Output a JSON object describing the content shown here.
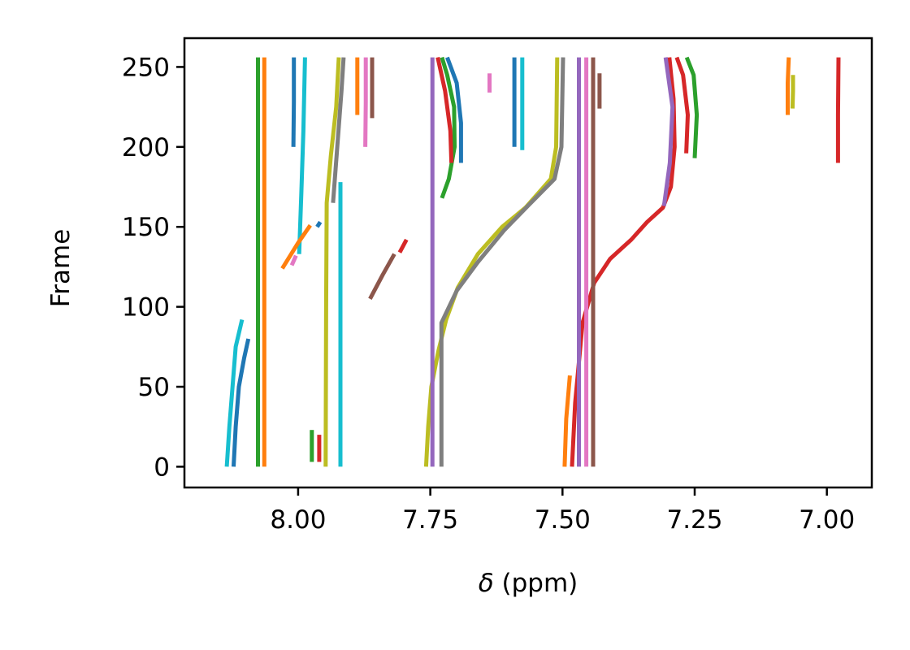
{
  "chart_data": {
    "type": "line",
    "xlabel": "δ (ppm)",
    "xlabel_symbol": "δ",
    "xlabel_unit": " (ppm)",
    "ylabel": "Frame",
    "xlim": [
      8.215,
      6.915
    ],
    "ylim": [
      -13,
      268
    ],
    "x_reversed": true,
    "grid": false,
    "x_ticks": [
      8.0,
      7.75,
      7.5,
      7.25,
      7.0
    ],
    "x_tick_labels": [
      "8.00",
      "7.75",
      "7.50",
      "7.25",
      "7.00"
    ],
    "y_ticks": [
      0,
      50,
      100,
      150,
      200,
      250
    ],
    "y_tick_labels": [
      "0",
      "50",
      "100",
      "150",
      "200",
      "250"
    ],
    "series": [
      {
        "color": "#17becf",
        "points": [
          [
            8.135,
            0
          ],
          [
            8.13,
            25
          ],
          [
            8.124,
            50
          ],
          [
            8.118,
            75
          ],
          [
            8.106,
            92
          ]
        ]
      },
      {
        "color": "#1f77b4",
        "points": [
          [
            8.122,
            0
          ],
          [
            8.118,
            25
          ],
          [
            8.112,
            50
          ],
          [
            8.102,
            68
          ],
          [
            8.094,
            80
          ]
        ]
      },
      {
        "color": "#2ca02c",
        "points": [
          [
            8.076,
            0
          ],
          [
            8.076,
            128
          ],
          [
            8.076,
            256
          ]
        ]
      },
      {
        "color": "#ff7f0e",
        "points": [
          [
            8.064,
            0
          ],
          [
            8.064,
            128
          ],
          [
            8.064,
            256
          ]
        ]
      },
      {
        "color": "#1f77b4",
        "points": [
          [
            8.009,
            200
          ],
          [
            8.008,
            228
          ],
          [
            8.008,
            256
          ]
        ]
      },
      {
        "color": "#17becf",
        "points": [
          [
            7.998,
            133
          ],
          [
            7.994,
            170
          ],
          [
            7.99,
            210
          ],
          [
            7.987,
            256
          ]
        ]
      },
      {
        "color": "#ff7f0e",
        "points": [
          [
            8.03,
            124
          ],
          [
            8.0,
            140
          ],
          [
            7.977,
            151
          ]
        ]
      },
      {
        "color": "#e377c2",
        "points": [
          [
            8.012,
            126
          ],
          [
            8.004,
            132
          ]
        ]
      },
      {
        "color": "#1f77b4",
        "points": [
          [
            7.964,
            150
          ],
          [
            7.958,
            153
          ]
        ]
      },
      {
        "color": "#2ca02c",
        "points": [
          [
            7.974,
            3
          ],
          [
            7.974,
            23
          ]
        ]
      },
      {
        "color": "#d62728",
        "points": [
          [
            7.96,
            3
          ],
          [
            7.96,
            20
          ]
        ]
      },
      {
        "color": "#bcbd22",
        "points": [
          [
            7.948,
            0
          ],
          [
            7.947,
            100
          ],
          [
            7.946,
            165
          ],
          [
            7.938,
            195
          ],
          [
            7.928,
            225
          ],
          [
            7.923,
            256
          ]
        ]
      },
      {
        "color": "#7f7f7f",
        "points": [
          [
            7.934,
            165
          ],
          [
            7.926,
            200
          ],
          [
            7.918,
            235
          ],
          [
            7.914,
            256
          ]
        ]
      },
      {
        "color": "#17becf",
        "points": [
          [
            7.92,
            0
          ],
          [
            7.92,
            90
          ],
          [
            7.92,
            178
          ]
        ]
      },
      {
        "color": "#ff7f0e",
        "points": [
          [
            7.888,
            220
          ],
          [
            7.888,
            256
          ]
        ]
      },
      {
        "color": "#e377c2",
        "points": [
          [
            7.873,
            200
          ],
          [
            7.872,
            228
          ],
          [
            7.872,
            256
          ]
        ]
      },
      {
        "color": "#8c564b",
        "points": [
          [
            7.86,
            218
          ],
          [
            7.86,
            256
          ]
        ]
      },
      {
        "color": "#8c564b",
        "points": [
          [
            7.864,
            105
          ],
          [
            7.84,
            120
          ],
          [
            7.818,
            133
          ]
        ]
      },
      {
        "color": "#d62728",
        "points": [
          [
            7.808,
            134
          ],
          [
            7.795,
            142
          ]
        ]
      },
      {
        "color": "#bcbd22",
        "points": [
          [
            7.758,
            0
          ],
          [
            7.754,
            25
          ],
          [
            7.748,
            50
          ],
          [
            7.735,
            72
          ],
          [
            7.72,
            92
          ],
          [
            7.698,
            112
          ],
          [
            7.66,
            133
          ],
          [
            7.614,
            150
          ],
          [
            7.57,
            162
          ],
          [
            7.522,
            180
          ],
          [
            7.512,
            200
          ],
          [
            7.51,
            256
          ]
        ]
      },
      {
        "color": "#9467bd",
        "points": [
          [
            7.746,
            0
          ],
          [
            7.746,
            128
          ],
          [
            7.746,
            256
          ]
        ]
      },
      {
        "color": "#7f7f7f",
        "points": [
          [
            7.729,
            0
          ],
          [
            7.729,
            50
          ],
          [
            7.729,
            90
          ],
          [
            7.7,
            110
          ],
          [
            7.66,
            128
          ],
          [
            7.61,
            148
          ],
          [
            7.56,
            165
          ],
          [
            7.515,
            180
          ],
          [
            7.502,
            200
          ],
          [
            7.499,
            256
          ]
        ]
      },
      {
        "color": "#2ca02c",
        "points": [
          [
            7.728,
            168
          ],
          [
            7.715,
            180
          ],
          [
            7.704,
            200
          ],
          [
            7.705,
            225
          ],
          [
            7.718,
            245
          ],
          [
            7.728,
            256
          ]
        ]
      },
      {
        "color": "#d62728",
        "points": [
          [
            7.736,
            256
          ],
          [
            7.722,
            235
          ],
          [
            7.712,
            210
          ],
          [
            7.71,
            190
          ]
        ]
      },
      {
        "color": "#1f77b4",
        "points": [
          [
            7.718,
            256
          ],
          [
            7.7,
            240
          ],
          [
            7.692,
            215
          ],
          [
            7.692,
            190
          ]
        ]
      },
      {
        "color": "#e377c2",
        "points": [
          [
            7.638,
            246
          ],
          [
            7.638,
            234
          ]
        ]
      },
      {
        "color": "#1f77b4",
        "points": [
          [
            7.591,
            200
          ],
          [
            7.591,
            228
          ],
          [
            7.591,
            256
          ]
        ]
      },
      {
        "color": "#17becf",
        "points": [
          [
            7.576,
            198
          ],
          [
            7.576,
            228
          ],
          [
            7.576,
            256
          ]
        ]
      },
      {
        "color": "#ff7f0e",
        "points": [
          [
            7.496,
            0
          ],
          [
            7.493,
            30
          ],
          [
            7.486,
            57
          ]
        ]
      },
      {
        "color": "#d62728",
        "points": [
          [
            7.482,
            0
          ],
          [
            7.476,
            40
          ],
          [
            7.462,
            90
          ],
          [
            7.44,
            115
          ],
          [
            7.41,
            130
          ],
          [
            7.37,
            142
          ],
          [
            7.34,
            153
          ],
          [
            7.31,
            162
          ],
          [
            7.295,
            175
          ],
          [
            7.288,
            200
          ],
          [
            7.29,
            230
          ],
          [
            7.298,
            256
          ]
        ]
      },
      {
        "color": "#9467bd",
        "points": [
          [
            7.469,
            0
          ],
          [
            7.469,
            100
          ],
          [
            7.469,
            180
          ],
          [
            7.469,
            256
          ]
        ]
      },
      {
        "color": "#e377c2",
        "points": [
          [
            7.455,
            0
          ],
          [
            7.455,
            128
          ],
          [
            7.455,
            256
          ]
        ]
      },
      {
        "color": "#8c564b",
        "points": [
          [
            7.442,
            0
          ],
          [
            7.442,
            128
          ],
          [
            7.442,
            256
          ]
        ]
      },
      {
        "color": "#8c564b",
        "points": [
          [
            7.43,
            224
          ],
          [
            7.43,
            246
          ]
        ]
      },
      {
        "color": "#9467bd",
        "points": [
          [
            7.308,
            163
          ],
          [
            7.297,
            190
          ],
          [
            7.292,
            225
          ],
          [
            7.305,
            256
          ]
        ]
      },
      {
        "color": "#d62728",
        "points": [
          [
            7.266,
            196
          ],
          [
            7.263,
            220
          ],
          [
            7.272,
            245
          ],
          [
            7.284,
            256
          ]
        ]
      },
      {
        "color": "#2ca02c",
        "points": [
          [
            7.25,
            193
          ],
          [
            7.246,
            220
          ],
          [
            7.252,
            245
          ],
          [
            7.265,
            256
          ]
        ]
      },
      {
        "color": "#ff7f0e",
        "points": [
          [
            7.074,
            220
          ],
          [
            7.074,
            240
          ],
          [
            7.072,
            256
          ]
        ]
      },
      {
        "color": "#bcbd22",
        "points": [
          [
            7.065,
            224
          ],
          [
            7.064,
            235
          ],
          [
            7.064,
            245
          ]
        ]
      },
      {
        "color": "#d62728",
        "points": [
          [
            6.979,
            190
          ],
          [
            6.979,
            220
          ],
          [
            6.978,
            256
          ]
        ]
      }
    ]
  }
}
